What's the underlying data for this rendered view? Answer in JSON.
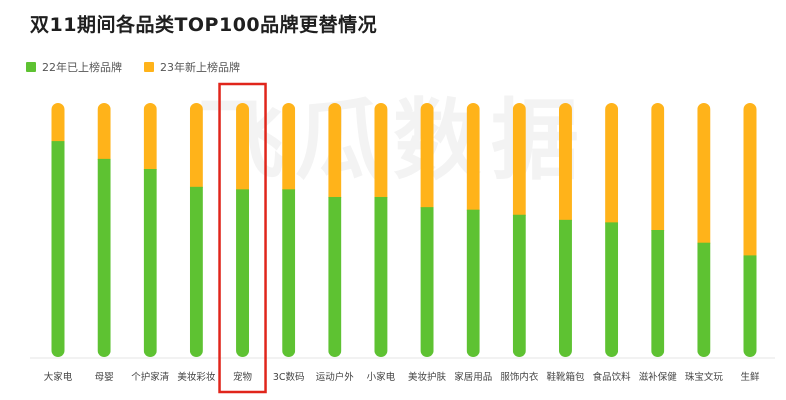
{
  "title": "双11期间各品类TOP100品牌更替情况",
  "watermark": "飞瓜数据",
  "colors": {
    "old": "#5ec232",
    "new": "#ffb31a",
    "highlight": "#e0251b"
  },
  "chart_data": {
    "type": "bar",
    "stacked": true,
    "title": "双11期间各品类TOP100品牌更替情况",
    "xlabel": "",
    "ylabel": "",
    "ylim": [
      0,
      100
    ],
    "legend_position": "top-left",
    "grid": false,
    "highlighted_category": "宠物",
    "categories": [
      "大家电",
      "母婴",
      "个护家清",
      "美妆彩妆",
      "宠物",
      "3C数码",
      "运动户外",
      "小家电",
      "美妆护肤",
      "家居用品",
      "服饰内衣",
      "鞋靴箱包",
      "食品饮料",
      "滋补保健",
      "珠宝文玩",
      "生鲜"
    ],
    "series": [
      {
        "name": "22年已上榜品牌",
        "color": "#5ec232",
        "values": [
          85,
          78,
          74,
          67,
          66,
          66,
          63,
          63,
          59,
          58,
          56,
          54,
          53,
          50,
          45,
          40
        ]
      },
      {
        "name": "23年新上榜品牌",
        "color": "#ffb31a",
        "values": [
          15,
          22,
          26,
          33,
          34,
          34,
          37,
          37,
          41,
          42,
          44,
          46,
          47,
          50,
          55,
          60
        ]
      }
    ]
  }
}
